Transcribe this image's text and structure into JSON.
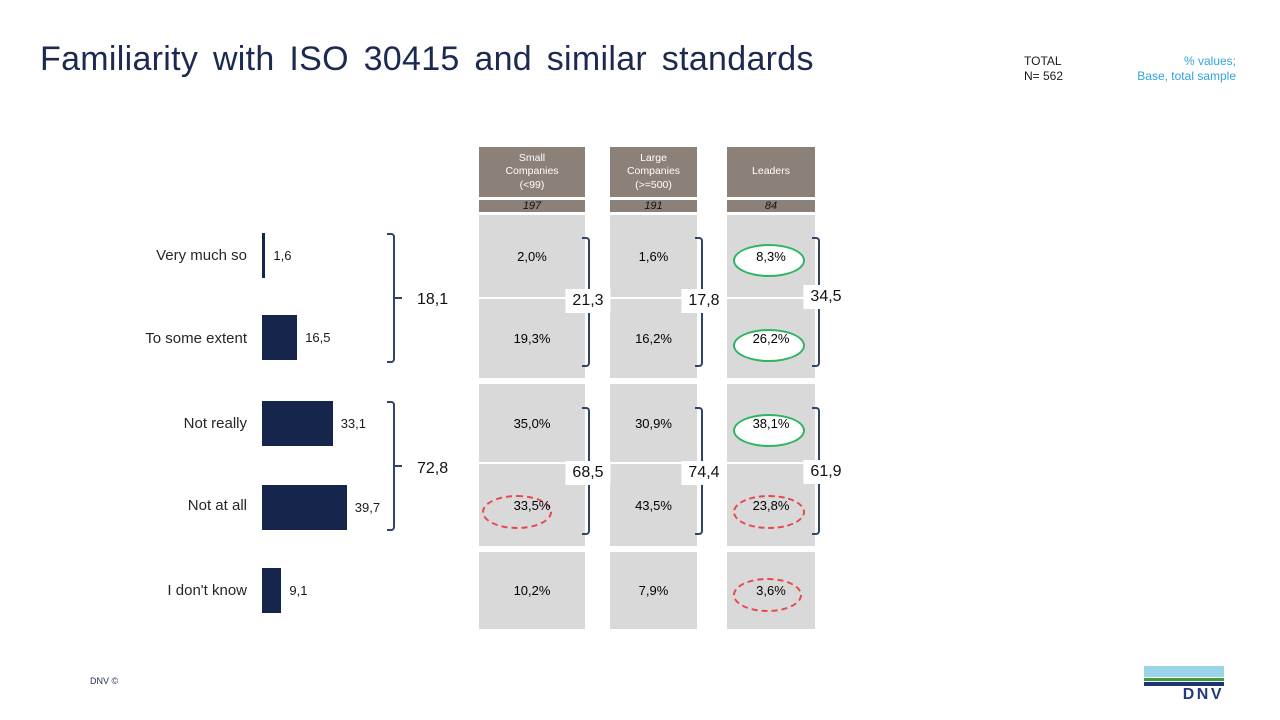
{
  "title": "Familiarity with ISO 30415 and similar standards",
  "meta": {
    "total_label": "TOTAL",
    "total_n": "N= 562",
    "note_line1": "% values;",
    "note_line2": "Base, total sample"
  },
  "left_chart": {
    "rows": [
      {
        "label": "Very much so",
        "value": "1,6"
      },
      {
        "label": "To some extent",
        "value": "16,5"
      },
      {
        "label": "Not really",
        "value": "33,1"
      },
      {
        "label": "Not at all",
        "value": "39,7"
      },
      {
        "label": "I don't know",
        "value": "9,1"
      }
    ],
    "group_sums": [
      "18,1",
      "72,8"
    ]
  },
  "columns": [
    {
      "header": "Small\nCompanies\n(<99)",
      "base": "197",
      "cells": [
        "2,0%",
        "19,3%",
        "35,0%",
        "33,5%",
        "10,2%"
      ],
      "sums": [
        "21,3",
        "68,5"
      ]
    },
    {
      "header": "Large\nCompanies\n(>=500)",
      "base": "191",
      "cells": [
        "1,6%",
        "16,2%",
        "30,9%",
        "43,5%",
        "7,9%"
      ],
      "sums": [
        "17,8",
        "74,4"
      ]
    },
    {
      "header": "Leaders",
      "base": "84",
      "cells": [
        "8,3%",
        "26,2%",
        "38,1%",
        "23,8%",
        "3,6%"
      ],
      "sums": [
        "34,5",
        "61,9"
      ]
    }
  ],
  "footer": {
    "copyright": "DNV ©",
    "logo_text": "DNV"
  },
  "colors": {
    "bar_navy": "#16254C",
    "title_navy": "#1C2A52",
    "note_cyan": "#31A3DC",
    "header_taupe": "#8B8178",
    "cell_gray": "#D9D9D9",
    "bracket_slate": "#2F4468",
    "highlight_green": "#2FB465",
    "highlight_red": "#E8474B",
    "logo_sky": "#9AD4E8",
    "logo_green": "#3F9C35",
    "logo_navy": "#1F3472"
  },
  "chart_data": {
    "type": "bar",
    "orientation": "horizontal",
    "unit": "%",
    "title": "Familiarity with ISO 30415 and similar standards",
    "note": "% values; Base, total sample",
    "total_n": 562,
    "categories": [
      "Very much so",
      "To some extent",
      "Not really",
      "Not at all",
      "I don't know"
    ],
    "series": [
      {
        "name": "Total",
        "n": 562,
        "values": [
          1.6,
          16.5,
          33.1,
          39.7,
          9.1
        ]
      },
      {
        "name": "Small Companies (<99)",
        "n": 197,
        "values": [
          2.0,
          19.3,
          35.0,
          33.5,
          10.2
        ]
      },
      {
        "name": "Large Companies (>=500)",
        "n": 191,
        "values": [
          1.6,
          16.2,
          30.9,
          43.5,
          7.9
        ]
      },
      {
        "name": "Leaders",
        "n": 84,
        "values": [
          8.3,
          26.2,
          38.1,
          23.8,
          3.6
        ]
      }
    ],
    "group_sums": {
      "familiar_top2": {
        "Total": 18.1,
        "Small Companies (<99)": 21.3,
        "Large Companies (>=500)": 17.8,
        "Leaders": 34.5
      },
      "not_familiar": {
        "Total": 72.8,
        "Small Companies (<99)": 68.5,
        "Large Companies (>=500)": 74.4,
        "Leaders": 61.9
      }
    },
    "highlights": {
      "green_solid_circle": [
        [
          "Leaders",
          "Very much so"
        ],
        [
          "Leaders",
          "To some extent"
        ],
        [
          "Leaders",
          "Not really"
        ]
      ],
      "red_dashed_circle": [
        [
          "Small Companies (<99)",
          "Not at all"
        ],
        [
          "Leaders",
          "Not at all"
        ],
        [
          "Leaders",
          "I don't know"
        ]
      ]
    }
  }
}
